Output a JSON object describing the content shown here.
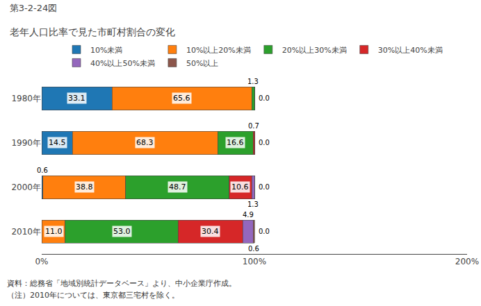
{
  "chart_data": {
    "type": "bar",
    "orientation": "horizontal",
    "stacked": true,
    "title": "第3-2-24図",
    "subtitle": "老年人口比率で見た市町村割合の変化",
    "categories": [
      "1980年",
      "1990年",
      "2000年",
      "2010年"
    ],
    "series": [
      {
        "name": "10%未満",
        "values": [
          33.1,
          14.5,
          0.6,
          0.1
        ],
        "value_labels": [
          "33.1",
          "14.5",
          "0.6",
          null
        ]
      },
      {
        "name": "10%以上20%未満",
        "values": [
          65.6,
          68.3,
          38.8,
          11.0
        ],
        "value_labels": [
          "65.6",
          "68.3",
          "38.8",
          "11.0"
        ]
      },
      {
        "name": "20%以上30%未満",
        "values": [
          1.3,
          16.6,
          48.7,
          53.0
        ],
        "value_labels": [
          "1.3",
          "16.6",
          "48.7",
          "53.0"
        ]
      },
      {
        "name": "30%以上40%未満",
        "values": [
          0.0,
          0.7,
          10.6,
          30.4
        ],
        "value_labels": [
          null,
          "0.7",
          "10.6",
          "30.4"
        ]
      },
      {
        "name": "40%以上50%未満",
        "values": [
          0.0,
          0.0,
          1.3,
          4.9
        ],
        "value_labels": [
          null,
          null,
          "1.3",
          "4.9"
        ]
      },
      {
        "name": "50%以上",
        "values": [
          0.0,
          0.0,
          0.0,
          0.6
        ],
        "value_labels": [
          null,
          null,
          null,
          "0.6"
        ]
      }
    ],
    "xlim": [
      0,
      200
    ],
    "xticks": [
      {
        "value": 0,
        "label": "0%"
      },
      {
        "value": 100,
        "label": "100%"
      },
      {
        "value": 200,
        "label": "200%"
      }
    ],
    "data_labels": true,
    "grid": false,
    "legend": "top",
    "annotations": [
      {
        "text": "0.0",
        "category": "1980年"
      },
      {
        "text": "0.0",
        "category": "1990年"
      },
      {
        "text": "0.0",
        "category": "2000年"
      },
      {
        "text": "0.0",
        "category": "2010年"
      },
      {
        "text": "資料：総務省「地域別統計データベース」より、中小企業庁作成。"
      },
      {
        "text": "（注）2010年については、東京都三宅村を除く。"
      }
    ]
  }
}
